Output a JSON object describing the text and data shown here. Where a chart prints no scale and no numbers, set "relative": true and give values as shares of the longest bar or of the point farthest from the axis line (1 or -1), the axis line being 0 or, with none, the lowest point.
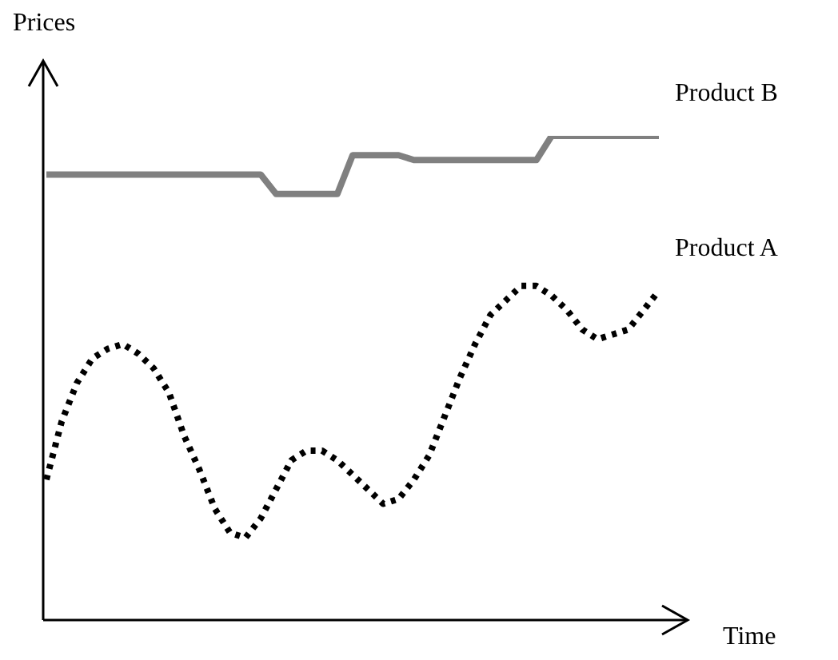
{
  "chart_data": {
    "type": "line",
    "relative": true,
    "xlabel": "Time",
    "ylabel": "Prices",
    "categories": [
      null,
      null,
      null,
      null,
      null,
      null,
      null,
      null,
      null,
      null,
      null,
      null,
      null,
      null,
      null,
      null,
      null,
      null,
      null,
      null,
      null,
      null,
      null,
      null,
      null,
      null,
      null,
      null,
      null,
      null,
      null,
      null,
      null,
      null,
      null,
      null,
      null,
      null,
      null,
      null,
      null
    ],
    "series": [
      {
        "name": "Product B",
        "color": "#808080",
        "line_style": "solid",
        "values": [
          0.92,
          0.92,
          0.92,
          0.92,
          0.92,
          0.92,
          0.92,
          0.92,
          0.92,
          0.92,
          0.92,
          0.92,
          0.92,
          0.92,
          0.92,
          0.88,
          0.88,
          0.88,
          0.88,
          0.88,
          0.96,
          0.96,
          0.96,
          0.96,
          0.95,
          0.95,
          0.95,
          0.95,
          0.95,
          0.95,
          0.95,
          0.95,
          0.95,
          1.0,
          1.0,
          1.0,
          1.0,
          1.0,
          1.0,
          1.0,
          1.0
        ]
      },
      {
        "name": "Product A",
        "color": "#000000",
        "line_style": "dotted",
        "values": [
          0.29,
          0.41,
          0.49,
          0.54,
          0.56,
          0.57,
          0.55,
          0.52,
          0.47,
          0.38,
          0.31,
          0.23,
          0.18,
          0.17,
          0.21,
          0.27,
          0.33,
          0.35,
          0.35,
          0.33,
          0.3,
          0.27,
          0.24,
          0.25,
          0.29,
          0.34,
          0.42,
          0.5,
          0.57,
          0.63,
          0.66,
          0.69,
          0.69,
          0.67,
          0.64,
          0.6,
          0.58,
          0.59,
          0.6,
          0.64,
          0.68
        ]
      }
    ]
  }
}
